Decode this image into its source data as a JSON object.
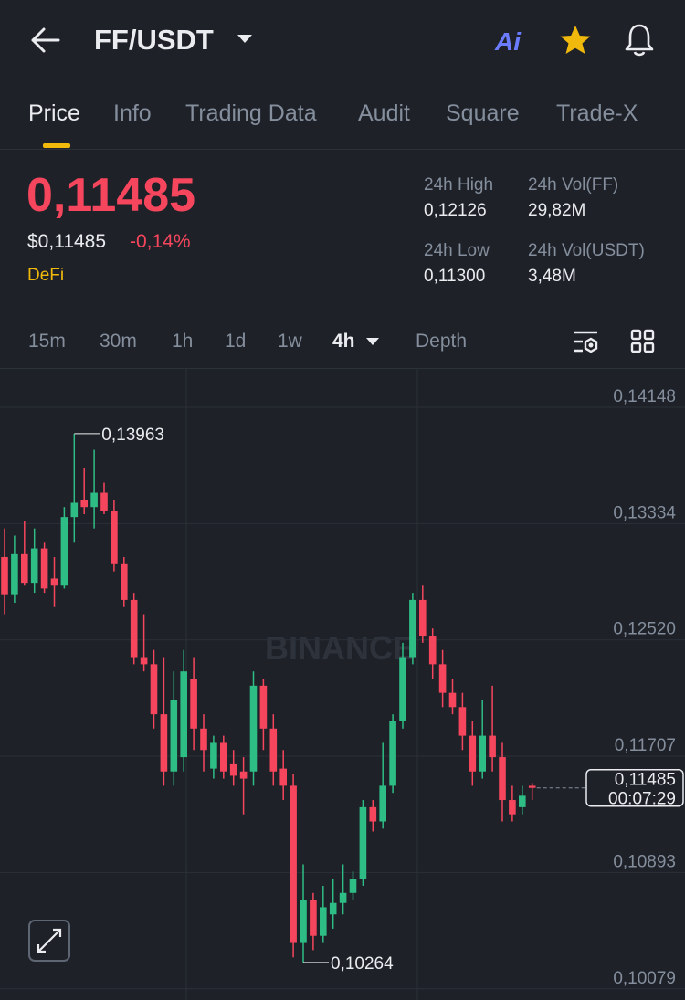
{
  "header": {
    "pair": "FF/USDT",
    "ai": "Ai"
  },
  "tabs": [
    "Price",
    "Info",
    "Trading Data",
    "Audit",
    "Square",
    "Trade-X"
  ],
  "price": {
    "last": "0,11485",
    "usd": "$0,11485",
    "change": "-0,14%",
    "tag": "DeFi"
  },
  "stats": [
    {
      "label": "24h High",
      "value": "0,12126"
    },
    {
      "label": "24h Vol(FF)",
      "value": "29,82M"
    },
    {
      "label": "24h Low",
      "value": "0,11300"
    },
    {
      "label": "24h Vol(USDT)",
      "value": "3,48M"
    }
  ],
  "timeframes": [
    "15m",
    "30m",
    "1h",
    "1d",
    "1w",
    "4h",
    "Depth"
  ],
  "chart_data": {
    "type": "candlestick",
    "watermark": "BINANCE",
    "up_color": "#2ebd85",
    "down_color": "#f6465d",
    "ylim": [
      0.10001,
      0.14416
    ],
    "yticks": [
      {
        "value": 0.14148,
        "label": "0,14148"
      },
      {
        "value": 0.13334,
        "label": "0,13334"
      },
      {
        "value": 0.1252,
        "label": "0,12520"
      },
      {
        "value": 0.11707,
        "label": "0,11707"
      },
      {
        "value": 0.10893,
        "label": "0,10893"
      },
      {
        "value": 0.10079,
        "label": "0,10079"
      }
    ],
    "grid": true,
    "open": [
      0.131,
      0.1284,
      0.1312,
      0.1292,
      0.1316,
      0.1295,
      0.129,
      0.1338,
      0.135,
      0.1345,
      0.1355,
      0.1342,
      0.1305,
      0.128,
      0.124,
      0.1235,
      0.12,
      0.116,
      0.117,
      0.1225,
      0.119,
      0.1162,
      0.118,
      0.1165,
      0.116,
      0.116,
      0.122,
      0.119,
      0.1162,
      0.115,
      0.104,
      0.107,
      0.1045,
      0.106,
      0.1068,
      0.1075,
      0.1085,
      0.1135,
      0.1125,
      0.115,
      0.1195,
      0.124,
      0.128,
      0.1255,
      0.1235,
      0.1215,
      0.1205,
      0.1185,
      0.116,
      0.1185,
      0.117,
      0.114,
      0.1135,
      0.115
    ],
    "high": [
      0.133,
      0.1325,
      0.1335,
      0.133,
      0.132,
      0.131,
      0.1345,
      0.13963,
      0.1372,
      0.1385,
      0.1362,
      0.135,
      0.131,
      0.1285,
      0.127,
      0.1245,
      0.124,
      0.123,
      0.1245,
      0.124,
      0.12,
      0.1185,
      0.1185,
      0.1175,
      0.117,
      0.123,
      0.1225,
      0.12,
      0.1175,
      0.1158,
      0.1095,
      0.1075,
      0.108,
      0.1085,
      0.1095,
      0.109,
      0.114,
      0.114,
      0.118,
      0.12,
      0.125,
      0.1285,
      0.129,
      0.126,
      0.1245,
      0.1225,
      0.1215,
      0.1195,
      0.121,
      0.122,
      0.118,
      0.115,
      0.115,
      0.1152
    ],
    "low": [
      0.127,
      0.1278,
      0.129,
      0.1285,
      0.1285,
      0.1275,
      0.1288,
      0.132,
      0.134,
      0.133,
      0.134,
      0.13,
      0.1275,
      0.1235,
      0.123,
      0.119,
      0.115,
      0.115,
      0.116,
      0.1175,
      0.116,
      0.1155,
      0.1155,
      0.115,
      0.113,
      0.115,
      0.1175,
      0.115,
      0.114,
      0.103,
      0.10264,
      0.1035,
      0.104,
      0.105,
      0.106,
      0.107,
      0.108,
      0.1118,
      0.112,
      0.1145,
      0.119,
      0.1235,
      0.125,
      0.1225,
      0.1205,
      0.12,
      0.1175,
      0.115,
      0.1155,
      0.116,
      0.1125,
      0.1125,
      0.113,
      0.114
    ],
    "close": [
      0.1284,
      0.1312,
      0.1292,
      0.1316,
      0.1288,
      0.129,
      0.1338,
      0.1348,
      0.1345,
      0.1355,
      0.1342,
      0.1305,
      0.128,
      0.124,
      0.1235,
      0.12,
      0.116,
      0.121,
      0.123,
      0.119,
      0.1175,
      0.118,
      0.116,
      0.1157,
      0.1155,
      0.122,
      0.119,
      0.116,
      0.115,
      0.104,
      0.107,
      0.1045,
      0.1065,
      0.1068,
      0.1075,
      0.1085,
      0.1135,
      0.1125,
      0.115,
      0.1195,
      0.124,
      0.128,
      0.1255,
      0.1235,
      0.1215,
      0.1205,
      0.1185,
      0.116,
      0.1185,
      0.117,
      0.114,
      0.113,
      0.1143,
      0.11485
    ],
    "high_label": "0,13963",
    "low_label": "0,10264",
    "last_label": "0,11485",
    "countdown": "00:07:29"
  }
}
